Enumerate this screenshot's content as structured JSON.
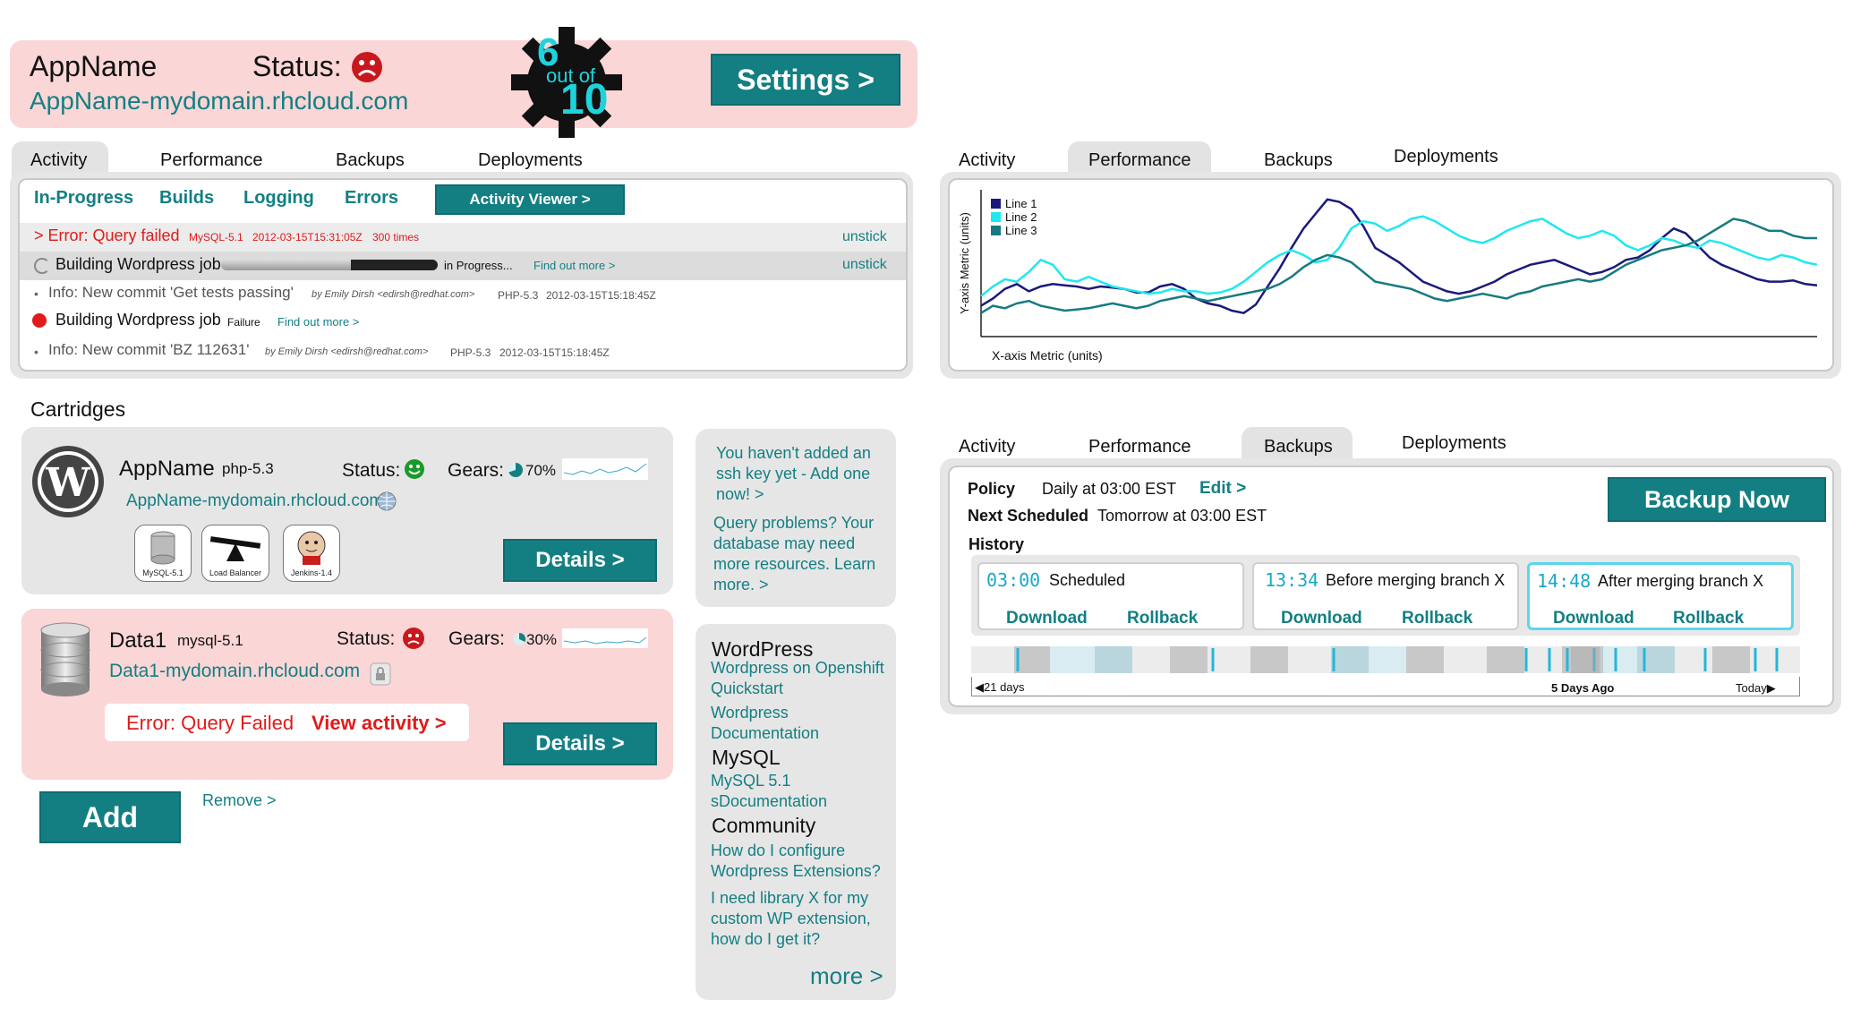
{
  "header": {
    "app_name": "AppName",
    "status_label": "Status:",
    "app_url": "AppName-mydomain.rhcloud.com",
    "gear_score": "6",
    "gear_out_of": "out of",
    "gear_total": "10",
    "settings_label": "Settings >"
  },
  "activity_tabs": [
    "Activity",
    "Performance",
    "Backups",
    "Deployments"
  ],
  "activity_panel": {
    "subtabs": [
      "In-Progress",
      "Builds",
      "Logging",
      "Errors"
    ],
    "viewer_button": "Activity Viewer >",
    "rows": [
      {
        "main": "> Error: Query failed",
        "cart": "MySQL-5.1",
        "time": "2012-03-15T15:31:05Z",
        "count": "300 times",
        "action": "unstick"
      },
      {
        "main": "Building Wordpress job",
        "state": "in Progress...",
        "link": "Find out more >",
        "action": "unstick",
        "progress": 0.6
      },
      {
        "main": "Info: New commit 'Get tests passing'",
        "by": "by Emily Dirsh <edirsh@redhat.com>",
        "cart": "PHP-5.3",
        "time": "2012-03-15T15:18:45Z"
      },
      {
        "main": "Building Wordpress job",
        "state": "Failure",
        "link": "Find out more >"
      },
      {
        "main": "Info: New commit 'BZ 112631'",
        "by": "by Emily Dirsh <edirsh@redhat.com>",
        "cart": "PHP-5.3",
        "time": "2012-03-15T15:18:45Z"
      }
    ]
  },
  "cartridges": {
    "heading": "Cartridges",
    "app": {
      "name": "AppName",
      "version": "php-5.3",
      "status_label": "Status:",
      "gears_label": "Gears:",
      "gears_pct": "70%",
      "gears_fraction": 0.7,
      "url": "AppName-mydomain.rhcloud.com",
      "sub_cartridges": [
        "MySQL-5.1",
        "Load Balancer",
        "Jenkins-1.4"
      ],
      "details_label": "Details >"
    },
    "db": {
      "name": "Data1",
      "version": "mysql-5.1",
      "status_label": "Status:",
      "gears_label": "Gears:",
      "gears_pct": "30%",
      "gears_fraction": 0.3,
      "url": "Data1-mydomain.rhcloud.com",
      "error_text": "Error: Query Failed",
      "error_link": "View activity >",
      "details_label": "Details >"
    },
    "add_label": "Add",
    "remove_label": "Remove >"
  },
  "tips": {
    "ssh": "You haven't added an ssh key yet - Add one now! >",
    "query": "Query problems? Your database may need more resources. Learn more. >"
  },
  "resources": {
    "wordpress_head": "WordPress",
    "wordpress_links": [
      "Wordpress on Openshift Quickstart",
      "Wordpress Documentation"
    ],
    "mysql_head": "MySQL",
    "mysql_links": [
      "MySQL 5.1 sDocumentation"
    ],
    "community_head": "Community",
    "community_links": [
      "How do I configure Wordpress Extensions?",
      "I need library X for my custom WP extension, how do I get it?"
    ],
    "more_label": "more >"
  },
  "perf_tabs": [
    "Activity",
    "Performance",
    "Backups",
    "Deployments"
  ],
  "chart_data": {
    "type": "line",
    "title": "",
    "xlabel": "X-axis Metric (units)",
    "ylabel": "Y-axis Metric (units)",
    "legend": "top-left",
    "x": [
      0,
      1,
      2,
      3,
      4,
      5,
      6,
      7,
      8,
      9,
      10,
      11,
      12,
      13,
      14,
      15,
      16,
      17,
      18,
      19,
      20,
      21,
      22,
      23,
      24,
      25,
      26,
      27,
      28,
      29,
      30,
      31,
      32,
      33,
      34,
      35,
      36,
      37,
      38,
      39,
      40,
      41,
      42,
      43,
      44,
      45,
      46,
      47,
      48,
      49,
      50,
      51,
      52,
      53,
      54,
      55,
      56,
      57,
      58,
      59,
      60,
      61,
      62,
      63,
      64,
      65,
      66,
      67,
      68,
      69,
      70
    ],
    "ylim": [
      0,
      120
    ],
    "series": [
      {
        "name": "Line 1",
        "color": "#1a1a7a",
        "values": [
          24,
          30,
          38,
          42,
          36,
          40,
          42,
          41,
          40,
          38,
          40,
          39,
          38,
          35,
          35,
          40,
          42,
          38,
          30,
          26,
          24,
          20,
          18,
          25,
          40,
          55,
          72,
          88,
          100,
          112,
          110,
          104,
          90,
          72,
          66,
          60,
          52,
          44,
          40,
          36,
          34,
          36,
          40,
          44,
          50,
          54,
          58,
          60,
          62,
          58,
          54,
          50,
          52,
          56,
          62,
          64,
          70,
          80,
          88,
          84,
          74,
          64,
          58,
          54,
          50,
          46,
          44,
          44,
          45,
          42,
          41
        ]
      },
      {
        "name": "Line 2",
        "color": "#1ee8f0",
        "values": [
          32,
          40,
          46,
          44,
          52,
          62,
          58,
          46,
          44,
          48,
          44,
          40,
          38,
          36,
          34,
          35,
          38,
          36,
          36,
          34,
          35,
          38,
          44,
          52,
          60,
          66,
          70,
          66,
          60,
          62,
          72,
          88,
          94,
          92,
          86,
          90,
          96,
          98,
          94,
          88,
          82,
          78,
          76,
          80,
          86,
          90,
          94,
          96,
          90,
          84,
          80,
          82,
          86,
          82,
          74,
          70,
          74,
          80,
          78,
          74,
          72,
          78,
          76,
          72,
          68,
          64,
          62,
          66,
          64,
          60,
          58
        ]
      },
      {
        "name": "Line 3",
        "color": "#167a80",
        "values": [
          18,
          24,
          22,
          26,
          28,
          24,
          22,
          20,
          21,
          22,
          24,
          26,
          24,
          22,
          24,
          28,
          30,
          32,
          30,
          28,
          30,
          32,
          34,
          36,
          38,
          42,
          48,
          56,
          62,
          66,
          64,
          60,
          52,
          44,
          42,
          40,
          38,
          34,
          30,
          28,
          30,
          32,
          34,
          32,
          30,
          34,
          36,
          40,
          42,
          44,
          46,
          44,
          46,
          52,
          58,
          62,
          66,
          70,
          72,
          74,
          78,
          84,
          90,
          96,
          94,
          90,
          86,
          86,
          82,
          80,
          80
        ]
      }
    ]
  },
  "backups": {
    "tabs": [
      "Activity",
      "Performance",
      "Backups",
      "Deployments"
    ],
    "policy_label": "Policy",
    "policy_value": "Daily at 03:00 EST",
    "edit_label": "Edit >",
    "next_label": "Next Scheduled",
    "next_value": "Tomorrow at 03:00 EST",
    "backup_now_label": "Backup Now",
    "history_label": "History",
    "items": [
      {
        "time": "03:00",
        "label": "Scheduled",
        "download": "Download",
        "rollback": "Rollback"
      },
      {
        "time": "13:34",
        "label": "Before merging branch X",
        "download": "Download",
        "rollback": "Rollback"
      },
      {
        "time": "14:48",
        "label": "After merging branch X",
        "download": "Download",
        "rollback": "Rollback"
      }
    ],
    "timeline_start": "21 days",
    "timeline_mid": "5 Days Ago",
    "timeline_end": "Today"
  }
}
